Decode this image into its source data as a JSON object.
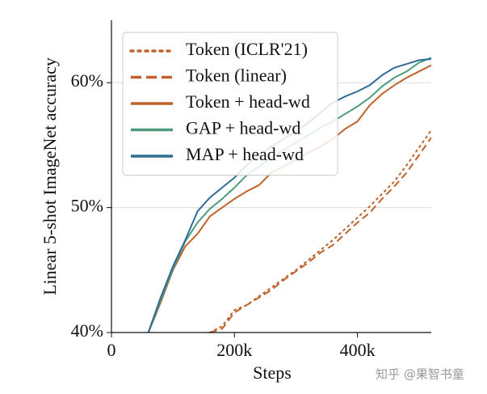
{
  "chart_data": {
    "type": "line",
    "xlabel": "Steps",
    "ylabel": "Linear 5-shot ImageNet accuracy",
    "x": [
      60000,
      80000,
      100000,
      120000,
      140000,
      160000,
      180000,
      200000,
      220000,
      240000,
      260000,
      280000,
      300000,
      320000,
      340000,
      360000,
      380000,
      400000,
      420000,
      440000,
      460000,
      480000,
      500000,
      520000
    ],
    "series": [
      {
        "name": "Token (ICLR'21)",
        "color": "#c0622a",
        "dash": "dotted",
        "values": [
          null,
          null,
          null,
          null,
          null,
          40,
          40.5,
          41.8,
          42.2,
          42.9,
          43.6,
          44.3,
          45.0,
          45.8,
          46.6,
          47.4,
          48.3,
          49.2,
          50.1,
          51.1,
          52.1,
          53.4,
          54.8,
          56.2
        ]
      },
      {
        "name": "Token (linear)",
        "color": "#c0622a",
        "dash": "dashed",
        "values": [
          null,
          null,
          null,
          null,
          null,
          40,
          40.3,
          41.6,
          42.2,
          42.8,
          43.4,
          44.2,
          44.9,
          45.6,
          46.4,
          47.0,
          47.9,
          48.8,
          49.6,
          50.7,
          51.7,
          52.8,
          54.2,
          55.6
        ]
      },
      {
        "name": "Token + head-wd",
        "color": "#c0622a",
        "dash": "solid",
        "values": [
          40,
          42.4,
          45.0,
          46.9,
          47.9,
          49.3,
          50.0,
          50.7,
          51.3,
          51.8,
          52.8,
          53.3,
          53.8,
          54.4,
          54.9,
          55.5,
          56.3,
          56.9,
          58.2,
          59.1,
          59.8,
          60.4,
          60.9,
          61.4
        ]
      },
      {
        "name": "GAP + head-wd",
        "color": "#4c9c7c",
        "dash": "solid",
        "values": [
          40,
          42.6,
          45.1,
          47.3,
          48.8,
          49.9,
          50.7,
          51.6,
          52.6,
          53.3,
          54.0,
          54.6,
          55.2,
          55.8,
          56.4,
          56.9,
          57.5,
          58.1,
          58.8,
          59.7,
          60.4,
          60.9,
          61.6,
          62.0
        ]
      },
      {
        "name": "MAP + head-wd",
        "color": "#2f6d96",
        "dash": "solid",
        "values": [
          40,
          42.8,
          45.3,
          47.4,
          49.7,
          50.8,
          51.6,
          52.4,
          53.4,
          54.2,
          54.9,
          55.5,
          56.1,
          56.8,
          57.6,
          58.4,
          58.9,
          59.3,
          59.8,
          60.6,
          61.2,
          61.5,
          61.8,
          61.9
        ]
      }
    ],
    "xlim": [
      0,
      520000
    ],
    "ylim": [
      40,
      65
    ],
    "xticks": [
      0,
      {
        "value": 200000,
        "label": "200k"
      },
      {
        "value": 400000,
        "label": "400k"
      }
    ],
    "yticks": [
      {
        "value": 40,
        "label": "40%"
      },
      {
        "value": 50,
        "label": "50%"
      },
      {
        "value": 60,
        "label": "60%"
      }
    ],
    "grid": true,
    "legend": "upper left"
  },
  "watermark": "知乎 @果智书童"
}
